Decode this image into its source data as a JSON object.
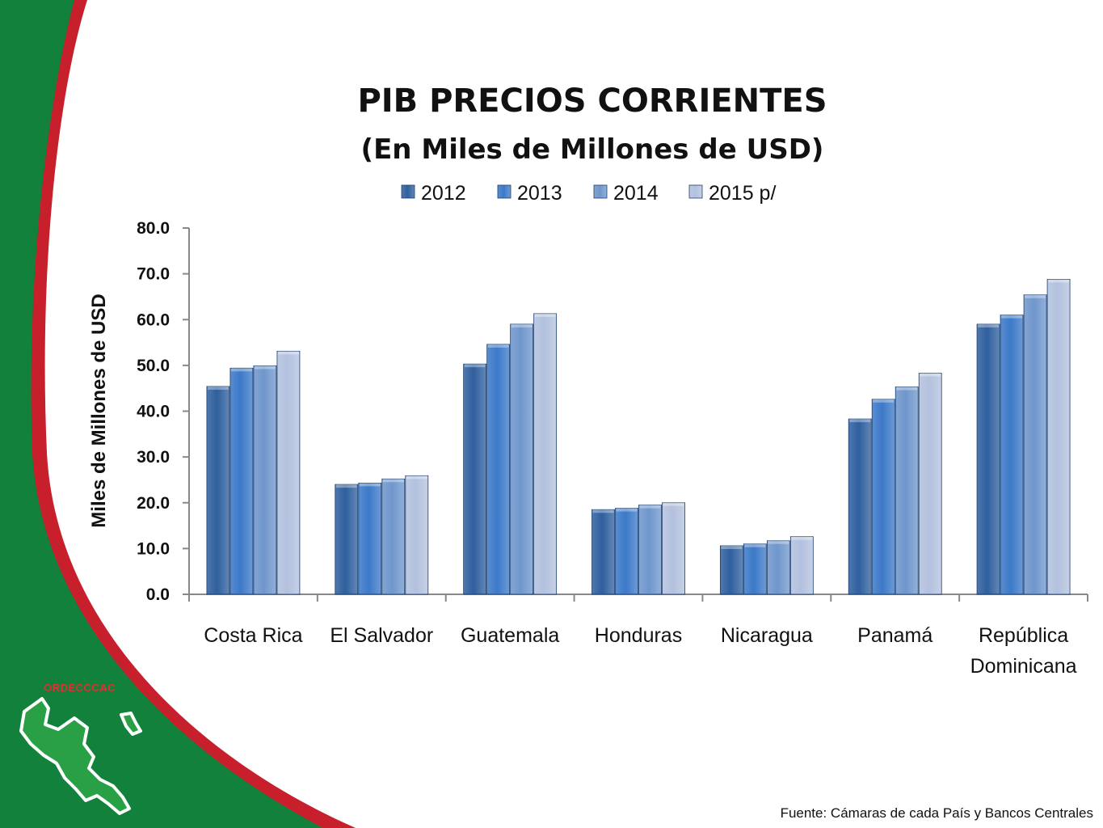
{
  "brand": "ORDECCCAC",
  "source": "Fuente: Cámaras de cada País y Bancos Centrales",
  "colors": {
    "green_panel": "#12813c",
    "red_stripe": "#c71f2b",
    "map_green": "#2aa046",
    "series": [
      "#2f5f9e",
      "#3c79c8",
      "#6f96cc",
      "#b3c1de"
    ]
  },
  "icons": [
    "central-america-map-icon"
  ],
  "chart_data": {
    "type": "bar",
    "title": "PIB PRECIOS CORRIENTES",
    "subtitle": "(En Miles de Millones de USD)",
    "xlabel": "",
    "ylabel": "Miles de Millones de USD",
    "ylim": [
      0,
      80
    ],
    "yticks": [
      "0.0",
      "10.0",
      "20.0",
      "30.0",
      "40.0",
      "50.0",
      "60.0",
      "70.0",
      "80.0"
    ],
    "grid": false,
    "legend_position": "top",
    "categories": [
      "Costa Rica",
      "El Salvador",
      "Guatemala",
      "Honduras",
      "Nicaragua",
      "Panamá",
      "República Dominicana"
    ],
    "category_lines": [
      [
        "Costa Rica"
      ],
      [
        "El Salvador"
      ],
      [
        "Guatemala"
      ],
      [
        "Honduras"
      ],
      [
        "Nicaragua"
      ],
      [
        "Panamá"
      ],
      [
        "República",
        "Dominicana"
      ]
    ],
    "series": [
      {
        "name": "2012",
        "values": [
          45.4,
          24.0,
          50.3,
          18.5,
          10.6,
          38.3,
          59.0
        ]
      },
      {
        "name": "2013",
        "values": [
          49.4,
          24.3,
          54.6,
          18.8,
          11.0,
          42.6,
          61.0
        ]
      },
      {
        "name": "2014",
        "values": [
          49.9,
          25.2,
          59.0,
          19.5,
          11.7,
          45.3,
          65.4
        ]
      },
      {
        "name": "2015 p/",
        "values": [
          53.1,
          25.9,
          61.3,
          20.0,
          12.6,
          48.3,
          68.8
        ]
      }
    ]
  }
}
